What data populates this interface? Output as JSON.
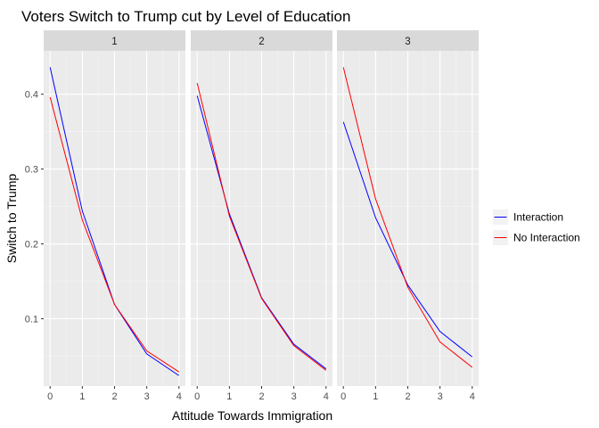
{
  "chart_data": {
    "type": "line",
    "title": "Voters Switch to Trump cut by Level of Education",
    "xlabel": "Attitude Towards Immigration",
    "ylabel": "Switch to Trump",
    "x": [
      0,
      1,
      2,
      3,
      4
    ],
    "x_ticks": [
      "0",
      "1",
      "2",
      "3",
      "4"
    ],
    "y_ticks": [
      "0.1",
      "0.2",
      "0.3",
      "0.4"
    ],
    "xlim": [
      -0.2,
      4.2
    ],
    "ylim": [
      0.01,
      0.458
    ],
    "grid": true,
    "legend_position": "right",
    "colors": {
      "Interaction": "#0000FF",
      "No Interaction": "#FF0000"
    },
    "panels": [
      {
        "facet": "1",
        "series": [
          {
            "name": "Interaction",
            "values": [
              0.436,
              0.244,
              0.119,
              0.053,
              0.024
            ]
          },
          {
            "name": "No Interaction",
            "values": [
              0.396,
              0.232,
              0.119,
              0.057,
              0.029
            ]
          }
        ]
      },
      {
        "facet": "2",
        "series": [
          {
            "name": "Interaction",
            "values": [
              0.398,
              0.24,
              0.128,
              0.066,
              0.033
            ]
          },
          {
            "name": "No Interaction",
            "values": [
              0.415,
              0.237,
              0.127,
              0.064,
              0.031
            ]
          }
        ]
      },
      {
        "facet": "3",
        "series": [
          {
            "name": "Interaction",
            "values": [
              0.363,
              0.235,
              0.145,
              0.083,
              0.049
            ]
          },
          {
            "name": "No Interaction",
            "values": [
              0.436,
              0.26,
              0.142,
              0.069,
              0.035
            ]
          }
        ]
      }
    ],
    "legend": [
      "Interaction",
      "No Interaction"
    ]
  }
}
